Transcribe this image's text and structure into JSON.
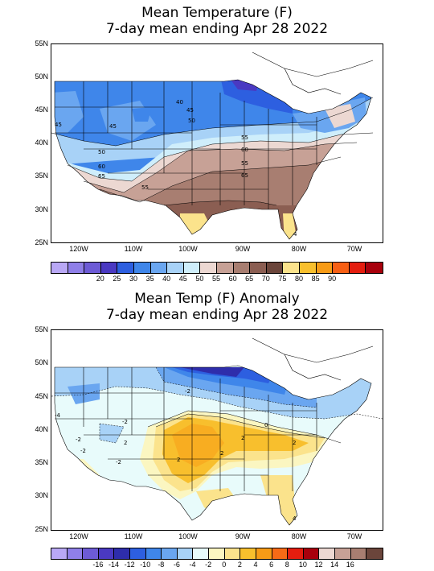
{
  "panels": [
    {
      "title_line1": "Mean Temperature (F)",
      "title_line2": "7-day mean ending Apr 28 2022",
      "lat_labels": [
        "55N",
        "50N",
        "45N",
        "40N",
        "35N",
        "30N",
        "25N"
      ],
      "lon_labels": [
        "120W",
        "110W",
        "100W",
        "90W",
        "80W",
        "70W"
      ],
      "colorbar": {
        "colors": [
          "#b9a8f5",
          "#8f7fe8",
          "#6d5bd6",
          "#4a39c2",
          "#2d5fe0",
          "#3f86ea",
          "#6aa6f0",
          "#a8d2f7",
          "#cfeefb",
          "#ecd8d2",
          "#c7a196",
          "#a87e71",
          "#8b5e52",
          "#6b453b",
          "#fbe38c",
          "#f8bf2d",
          "#f79b16",
          "#f75f14",
          "#e41d0f",
          "#a8000c"
        ],
        "labels": [
          "20",
          "25",
          "30",
          "35",
          "40",
          "45",
          "50",
          "55",
          "60",
          "65",
          "70",
          "75",
          "80",
          "85",
          "90"
        ]
      },
      "contour_labels": [
        "40",
        "45",
        "50",
        "45",
        "45",
        "50",
        "55",
        "60",
        "60",
        "65",
        "65",
        "55",
        "55",
        "4"
      ]
    },
    {
      "title_line1": "Mean Temp (F) Anomaly",
      "title_line2": "7-day mean ending Apr 28 2022",
      "lat_labels": [
        "55N",
        "50N",
        "45N",
        "40N",
        "35N",
        "30N",
        "25N"
      ],
      "lon_labels": [
        "120W",
        "110W",
        "100W",
        "90W",
        "80W",
        "70W"
      ],
      "colorbar": {
        "colors": [
          "#b9a8f5",
          "#8f7fe8",
          "#6d5bd6",
          "#4a39c2",
          "#2e2dab",
          "#2d5fe0",
          "#3f86ea",
          "#6aa6f0",
          "#a8d2f7",
          "#e8fbfb",
          "#fbf6c1",
          "#fbe38c",
          "#f8bf2d",
          "#f79b16",
          "#f76a16",
          "#e41d0f",
          "#a8000c",
          "#ecd8d2",
          "#c7a196",
          "#a87e71",
          "#6b453b"
        ],
        "labels": [
          "-16",
          "-14",
          "-12",
          "-10",
          "-8",
          "-6",
          "-4",
          "-2",
          "0",
          "2",
          "4",
          "6",
          "8",
          "10",
          "12",
          "14",
          "16"
        ]
      },
      "contour_labels": [
        "-2",
        "-2",
        "-2",
        "2",
        "-2",
        "2",
        "0",
        "2",
        "-4",
        "2",
        "2",
        "4",
        "-2"
      ]
    }
  ]
}
